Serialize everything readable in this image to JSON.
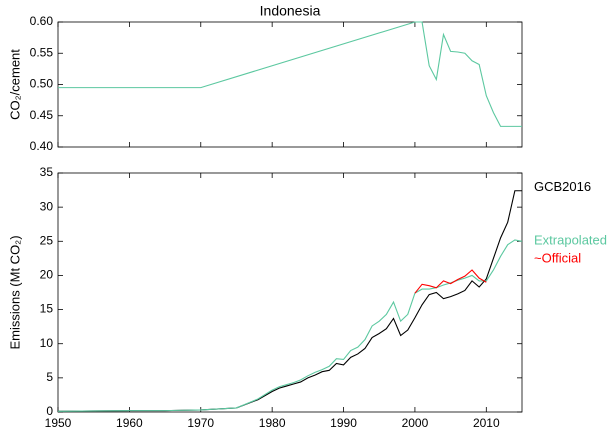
{
  "chart_data": [
    {
      "type": "line",
      "title": "Indonesia",
      "y_label": "CO₂/cement",
      "xlim": [
        1950,
        2015
      ],
      "xticks": [
        1950,
        1960,
        1970,
        1980,
        1990,
        2000,
        2010
      ],
      "ylim": [
        0.4,
        0.6
      ],
      "yticks": [
        {
          "value": 0.4,
          "label": "0.40"
        },
        {
          "value": 0.45,
          "label": "0.45"
        },
        {
          "value": 0.5,
          "label": "0.50"
        },
        {
          "value": 0.55,
          "label": "0.55"
        },
        {
          "value": 0.6,
          "label": "0.60"
        }
      ],
      "series": [
        {
          "color": "#5cc8a0",
          "x": [
            1950,
            1970,
            2000,
            2001,
            2002,
            2003,
            2004,
            2005,
            2006,
            2007,
            2008,
            2009,
            2010,
            2011,
            2012,
            2013,
            2014,
            2015
          ],
          "values": [
            0.495,
            0.495,
            0.6,
            0.6,
            0.53,
            0.508,
            0.58,
            0.553,
            0.552,
            0.55,
            0.538,
            0.532,
            0.482,
            0.455,
            0.433,
            0.433,
            0.433,
            0.433
          ]
        }
      ]
    },
    {
      "type": "line",
      "y_label": "Emissions (Mt CO₂)",
      "xlim": [
        1950,
        2015
      ],
      "xticks": [
        1950,
        1960,
        1970,
        1980,
        1990,
        2000,
        2010
      ],
      "ylim": [
        0,
        35
      ],
      "yticks": [
        0,
        5,
        10,
        15,
        20,
        25,
        30,
        35
      ],
      "series": [
        {
          "name": "GCB2016",
          "color": "#000000",
          "x": [
            1950,
            1955,
            1960,
            1965,
            1970,
            1975,
            1978,
            1980,
            1981,
            1982,
            1983,
            1984,
            1985,
            1986,
            1987,
            1988,
            1989,
            1990,
            1991,
            1992,
            1993,
            1994,
            1995,
            1996,
            1997,
            1998,
            1999,
            2000,
            2001,
            2002,
            2003,
            2004,
            2005,
            2006,
            2007,
            2008,
            2009,
            2010,
            2011,
            2012,
            2013,
            2014,
            2015
          ],
          "values": [
            0.1,
            0.15,
            0.2,
            0.2,
            0.3,
            0.6,
            1.8,
            3.0,
            3.5,
            3.8,
            4.1,
            4.4,
            5.0,
            5.4,
            5.9,
            6.1,
            7.1,
            6.9,
            8.0,
            8.5,
            9.3,
            10.9,
            11.5,
            12.2,
            13.7,
            11.2,
            12.0,
            13.8,
            15.7,
            17.2,
            17.5,
            16.6,
            16.9,
            17.3,
            17.8,
            19.2,
            18.3,
            19.5,
            22.5,
            25.5,
            27.8,
            32.4,
            32.4
          ]
        },
        {
          "name": "Extrapolated",
          "color": "#5cc8a0",
          "x": [
            1950,
            1955,
            1960,
            1965,
            1970,
            1975,
            1978,
            1980,
            1981,
            1982,
            1983,
            1984,
            1985,
            1986,
            1987,
            1988,
            1989,
            1990,
            1991,
            1992,
            1993,
            1994,
            1995,
            1996,
            1997,
            1998,
            1999,
            2000,
            2001,
            2002,
            2003,
            2004,
            2005,
            2006,
            2007,
            2008,
            2009,
            2010,
            2011,
            2012,
            2013,
            2014,
            2015
          ],
          "values": [
            0.1,
            0.15,
            0.2,
            0.2,
            0.3,
            0.6,
            1.9,
            3.2,
            3.7,
            4.0,
            4.3,
            4.7,
            5.3,
            5.8,
            6.2,
            6.7,
            7.8,
            7.7,
            9.0,
            9.5,
            10.6,
            12.6,
            13.3,
            14.3,
            16.1,
            13.3,
            14.3,
            17.4,
            18.0,
            18.0,
            18.2,
            18.6,
            18.9,
            19.3,
            19.6,
            20.0,
            19.2,
            19.2,
            20.8,
            22.8,
            24.5,
            25.2,
            25.0
          ]
        },
        {
          "name": "~Official",
          "color": "#ff0000",
          "x": [
            2000,
            2001,
            2002,
            2003,
            2004,
            2005,
            2006,
            2007,
            2008,
            2009,
            2010
          ],
          "values": [
            17.4,
            18.7,
            18.5,
            18.2,
            19.2,
            18.8,
            19.4,
            19.9,
            20.8,
            19.6,
            19.0
          ]
        }
      ]
    }
  ]
}
